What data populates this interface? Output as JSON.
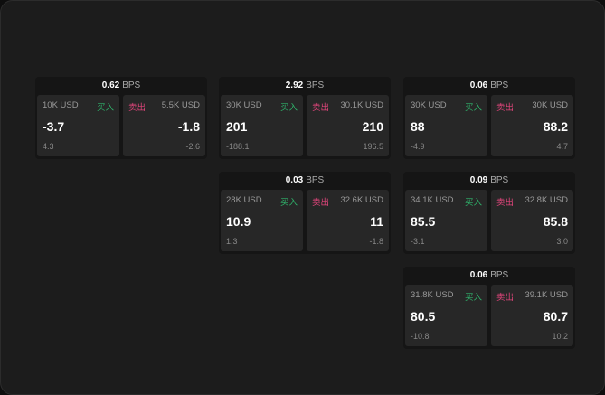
{
  "buy_label": "买入",
  "sell_label": "卖出",
  "unit": "BPS",
  "colors": {
    "buy": "#2fb36b",
    "sell": "#e0457b"
  },
  "quotes": [
    {
      "spread": "0.62",
      "bid_size": "10K USD",
      "bid": "-3.7",
      "bid_chg": "4.3",
      "ask_size": "5.5K USD",
      "ask": "-1.8",
      "ask_chg": "-2.6"
    },
    {
      "spread": "2.92",
      "bid_size": "30K USD",
      "bid": "201",
      "bid_chg": "-188.1",
      "ask_size": "30.1K USD",
      "ask": "210",
      "ask_chg": "196.5"
    },
    {
      "spread": "0.06",
      "bid_size": "30K USD",
      "bid": "88",
      "bid_chg": "-4.9",
      "ask_size": "30K USD",
      "ask": "88.2",
      "ask_chg": "4.7"
    },
    {
      "spread": "0.03",
      "bid_size": "28K USD",
      "bid": "10.9",
      "bid_chg": "1.3",
      "ask_size": "32.6K USD",
      "ask": "11",
      "ask_chg": "-1.8"
    },
    {
      "spread": "0.09",
      "bid_size": "34.1K USD",
      "bid": "85.5",
      "bid_chg": "-3.1",
      "ask_size": "32.8K USD",
      "ask": "85.8",
      "ask_chg": "3.0"
    },
    {
      "spread": "0.06",
      "bid_size": "31.8K USD",
      "bid": "80.5",
      "bid_chg": "-10.8",
      "ask_size": "39.1K USD",
      "ask": "80.7",
      "ask_chg": "10.2"
    }
  ]
}
